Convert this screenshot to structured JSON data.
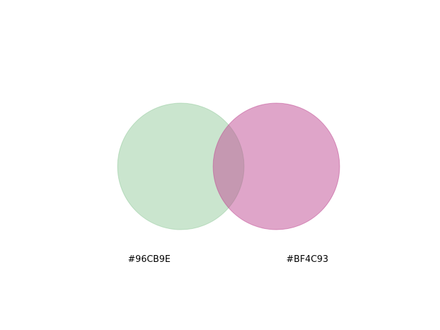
{
  "diagram": {
    "type": "venn",
    "sets": [
      {
        "label": "#96CB9E",
        "color": "#96CB9E"
      },
      {
        "label": "#BF4C93",
        "color": "#BF4C93"
      }
    ]
  }
}
